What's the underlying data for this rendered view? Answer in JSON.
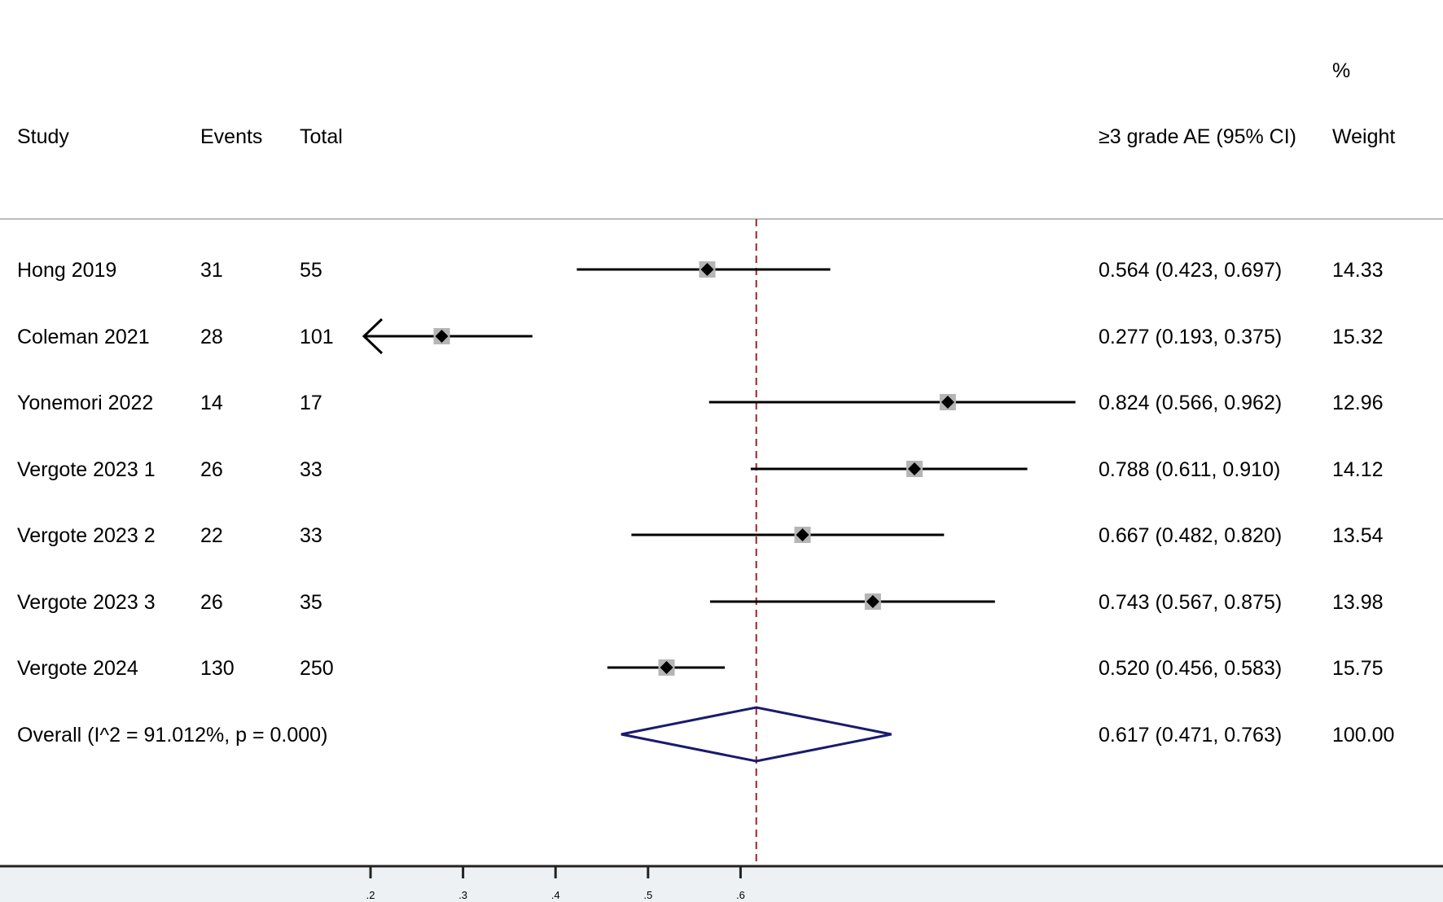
{
  "chart_data": {
    "type": "forest",
    "headers": {
      "study": "Study",
      "events": "Events",
      "total": "Total",
      "effect": "≥3 grade AE (95% CI)",
      "weight_top": "%",
      "weight": "Weight"
    },
    "studies": [
      {
        "study": "Hong 2019",
        "events": "31",
        "total": "55",
        "estimate": 0.564,
        "lower": 0.423,
        "upper": 0.697,
        "ci_text": "0.564 (0.423, 0.697)",
        "weight": "14.33"
      },
      {
        "study": "Coleman 2021",
        "events": "28",
        "total": "101",
        "estimate": 0.277,
        "lower": 0.193,
        "upper": 0.375,
        "ci_text": "0.277 (0.193, 0.375)",
        "weight": "15.32"
      },
      {
        "study": "Yonemori 2022",
        "events": "14",
        "total": "17",
        "estimate": 0.824,
        "lower": 0.566,
        "upper": 0.962,
        "ci_text": "0.824 (0.566, 0.962)",
        "weight": "12.96"
      },
      {
        "study": "Vergote 2023 1",
        "events": "26",
        "total": "33",
        "estimate": 0.788,
        "lower": 0.611,
        "upper": 0.91,
        "ci_text": "0.788 (0.611, 0.910)",
        "weight": "14.12"
      },
      {
        "study": "Vergote 2023 2",
        "events": "22",
        "total": "33",
        "estimate": 0.667,
        "lower": 0.482,
        "upper": 0.82,
        "ci_text": "0.667 (0.482, 0.820)",
        "weight": "13.54"
      },
      {
        "study": "Vergote 2023 3",
        "events": "26",
        "total": "35",
        "estimate": 0.743,
        "lower": 0.567,
        "upper": 0.875,
        "ci_text": "0.743 (0.567, 0.875)",
        "weight": "13.98"
      },
      {
        "study": "Vergote 2024",
        "events": "130",
        "total": "250",
        "estimate": 0.52,
        "lower": 0.456,
        "upper": 0.583,
        "ci_text": "0.520 (0.456, 0.583)",
        "weight": "15.75"
      }
    ],
    "overall": {
      "label": "Overall  (I^2 = 91.012%, p = 0.000)",
      "estimate": 0.617,
      "lower": 0.471,
      "upper": 0.763,
      "ci_text": "0.617 (0.471, 0.763)",
      "weight": "100.00"
    },
    "x_axis": {
      "ticks": [
        0.2,
        0.3,
        0.4,
        0.5,
        0.6
      ],
      "tick_labels": [
        ".2",
        ".3",
        ".4",
        ".5",
        ".6"
      ],
      "range": [
        0.2,
        0.962
      ]
    },
    "reference_line": 0.617,
    "colors": {
      "ci_line": "#000000",
      "point": "#000000",
      "weight_box": "#b5b5b5",
      "diamond": "#1a1a6e",
      "reference_line": "#8b2a2a",
      "axis": "#222222",
      "header_rule": "#bdbdbd",
      "axis_band": "#eef1f3"
    }
  }
}
